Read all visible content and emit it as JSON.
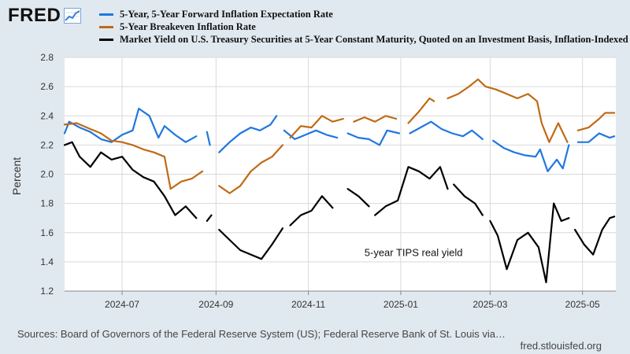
{
  "brand": {
    "logo_text": "FRED",
    "site": "fred.stlouisfed.org"
  },
  "footer": {
    "source": "Sources: Board of Governors of the Federal Reserve System (US); Federal Reserve Bank of St. Louis via…"
  },
  "chart_data": {
    "type": "line",
    "title": "",
    "xlabel": "",
    "ylabel": "Percent",
    "ylim": [
      1.2,
      2.8
    ],
    "yticks": [
      1.2,
      1.4,
      1.6,
      1.8,
      2.0,
      2.2,
      2.4,
      2.6,
      2.8
    ],
    "yticklabels": [
      "1.2",
      "1.4",
      "1.6",
      "1.8",
      "2.0",
      "2.2",
      "2.4",
      "2.6",
      "2.8"
    ],
    "xlim": [
      "2024-05-24",
      "2025-05-23"
    ],
    "xticks": [
      "2024-07-01",
      "2024-09-01",
      "2024-11-01",
      "2025-01-01",
      "2025-03-01",
      "2025-05-01"
    ],
    "xticklabels": [
      "2024-07",
      "2024-09",
      "2024-11",
      "2025-01",
      "2025-03",
      "2025-05"
    ],
    "grid": true,
    "legend_position": "top",
    "annotations": [
      {
        "text": "5-year TIPS real yield",
        "x": "2024-12-08",
        "y": 1.44
      }
    ],
    "series": [
      {
        "name": "5-Year, 5-Year Forward Inflation Expectation Rate",
        "color": "#1f77e0",
        "segments": [
          [
            [
              "2024-05-24",
              2.28
            ],
            [
              "2024-05-27",
              2.36
            ],
            [
              "2024-06-03",
              2.32
            ],
            [
              "2024-06-10",
              2.29
            ],
            [
              "2024-06-17",
              2.24
            ],
            [
              "2024-06-24",
              2.22
            ],
            [
              "2024-07-01",
              2.27
            ],
            [
              "2024-07-08",
              2.3
            ],
            [
              "2024-07-12",
              2.45
            ],
            [
              "2024-07-19",
              2.4
            ],
            [
              "2024-07-25",
              2.25
            ],
            [
              "2024-07-29",
              2.33
            ],
            [
              "2024-08-05",
              2.27
            ],
            [
              "2024-08-12",
              2.22
            ],
            [
              "2024-08-19",
              2.26
            ]
          ],
          [
            [
              "2024-08-26",
              2.29
            ],
            [
              "2024-08-28",
              2.2
            ]
          ],
          [
            [
              "2024-09-03",
              2.15
            ],
            [
              "2024-09-10",
              2.22
            ],
            [
              "2024-09-17",
              2.28
            ],
            [
              "2024-09-24",
              2.32
            ],
            [
              "2024-09-30",
              2.3
            ],
            [
              "2024-10-07",
              2.34
            ],
            [
              "2024-10-11",
              2.4
            ]
          ],
          [
            [
              "2024-10-16",
              2.3
            ],
            [
              "2024-10-23",
              2.24
            ],
            [
              "2024-10-30",
              2.27
            ],
            [
              "2024-11-06",
              2.3
            ],
            [
              "2024-11-13",
              2.27
            ],
            [
              "2024-11-20",
              2.25
            ]
          ],
          [
            [
              "2024-11-27",
              2.28
            ],
            [
              "2024-12-04",
              2.25
            ],
            [
              "2024-12-11",
              2.24
            ],
            [
              "2024-12-18",
              2.2
            ],
            [
              "2024-12-23",
              2.3
            ],
            [
              "2024-12-31",
              2.28
            ]
          ],
          [
            [
              "2025-01-07",
              2.28
            ],
            [
              "2025-01-14",
              2.32
            ],
            [
              "2025-01-21",
              2.36
            ],
            [
              "2025-01-28",
              2.31
            ],
            [
              "2025-02-04",
              2.28
            ],
            [
              "2025-02-11",
              2.26
            ],
            [
              "2025-02-17",
              2.3
            ],
            [
              "2025-02-24",
              2.24
            ]
          ],
          [
            [
              "2025-03-03",
              2.23
            ],
            [
              "2025-03-10",
              2.18
            ],
            [
              "2025-03-17",
              2.15
            ],
            [
              "2025-03-24",
              2.13
            ],
            [
              "2025-03-31",
              2.12
            ],
            [
              "2025-04-03",
              2.17
            ],
            [
              "2025-04-08",
              2.02
            ],
            [
              "2025-04-14",
              2.1
            ],
            [
              "2025-04-18",
              2.04
            ],
            [
              "2025-04-22",
              2.2
            ]
          ],
          [
            [
              "2025-04-28",
              2.22
            ],
            [
              "2025-05-05",
              2.22
            ],
            [
              "2025-05-12",
              2.28
            ],
            [
              "2025-05-19",
              2.25
            ],
            [
              "2025-05-22",
              2.26
            ]
          ]
        ]
      },
      {
        "name": "5-Year Breakeven Inflation Rate",
        "color": "#c06a16",
        "segments": [
          [
            [
              "2024-05-24",
              2.34
            ],
            [
              "2024-06-01",
              2.35
            ],
            [
              "2024-06-10",
              2.31
            ],
            [
              "2024-06-17",
              2.28
            ],
            [
              "2024-06-24",
              2.23
            ],
            [
              "2024-07-01",
              2.22
            ],
            [
              "2024-07-08",
              2.2
            ],
            [
              "2024-07-15",
              2.17
            ],
            [
              "2024-07-22",
              2.15
            ],
            [
              "2024-07-29",
              2.12
            ],
            [
              "2024-08-02",
              1.9
            ],
            [
              "2024-08-09",
              1.95
            ],
            [
              "2024-08-16",
              1.97
            ],
            [
              "2024-08-23",
              2.02
            ]
          ],
          [
            [
              "2024-09-03",
              1.92
            ],
            [
              "2024-09-10",
              1.87
            ],
            [
              "2024-09-17",
              1.92
            ],
            [
              "2024-09-24",
              2.02
            ],
            [
              "2024-10-01",
              2.08
            ],
            [
              "2024-10-08",
              2.12
            ],
            [
              "2024-10-15",
              2.2
            ]
          ],
          [
            [
              "2024-10-20",
              2.25
            ],
            [
              "2024-10-27",
              2.33
            ],
            [
              "2024-11-03",
              2.32
            ],
            [
              "2024-11-10",
              2.4
            ],
            [
              "2024-11-17",
              2.36
            ],
            [
              "2024-11-24",
              2.38
            ]
          ],
          [
            [
              "2024-12-01",
              2.36
            ],
            [
              "2024-12-08",
              2.39
            ],
            [
              "2024-12-15",
              2.36
            ],
            [
              "2024-12-22",
              2.4
            ],
            [
              "2024-12-29",
              2.38
            ]
          ],
          [
            [
              "2025-01-06",
              2.35
            ],
            [
              "2025-01-13",
              2.43
            ],
            [
              "2025-01-20",
              2.52
            ],
            [
              "2025-01-23",
              2.5
            ]
          ],
          [
            [
              "2025-02-01",
              2.52
            ],
            [
              "2025-02-08",
              2.55
            ],
            [
              "2025-02-15",
              2.6
            ],
            [
              "2025-02-21",
              2.65
            ],
            [
              "2025-02-26",
              2.6
            ],
            [
              "2025-03-05",
              2.58
            ],
            [
              "2025-03-12",
              2.55
            ],
            [
              "2025-03-19",
              2.52
            ],
            [
              "2025-03-26",
              2.55
            ],
            [
              "2025-04-01",
              2.5
            ],
            [
              "2025-04-04",
              2.35
            ],
            [
              "2025-04-09",
              2.22
            ],
            [
              "2025-04-15",
              2.35
            ],
            [
              "2025-04-21",
              2.22
            ]
          ],
          [
            [
              "2025-04-28",
              2.3
            ],
            [
              "2025-05-05",
              2.32
            ],
            [
              "2025-05-12",
              2.38
            ],
            [
              "2025-05-16",
              2.42
            ],
            [
              "2025-05-22",
              2.42
            ]
          ]
        ]
      },
      {
        "name": "Market Yield on U.S. Treasury Securities at 5-Year Constant Maturity, Quoted on an Investment Basis, Inflation-Indexed",
        "color": "#000000",
        "segments": [
          [
            [
              "2024-05-24",
              2.2
            ],
            [
              "2024-05-29",
              2.22
            ],
            [
              "2024-06-03",
              2.12
            ],
            [
              "2024-06-10",
              2.05
            ],
            [
              "2024-06-17",
              2.15
            ],
            [
              "2024-06-24",
              2.1
            ],
            [
              "2024-07-01",
              2.12
            ],
            [
              "2024-07-08",
              2.03
            ],
            [
              "2024-07-15",
              1.98
            ],
            [
              "2024-07-22",
              1.95
            ],
            [
              "2024-07-29",
              1.85
            ],
            [
              "2024-08-05",
              1.72
            ],
            [
              "2024-08-12",
              1.78
            ],
            [
              "2024-08-19",
              1.7
            ]
          ],
          [
            [
              "2024-08-26",
              1.68
            ],
            [
              "2024-08-29",
              1.72
            ]
          ],
          [
            [
              "2024-09-03",
              1.62
            ],
            [
              "2024-09-10",
              1.55
            ],
            [
              "2024-09-17",
              1.48
            ],
            [
              "2024-09-24",
              1.45
            ],
            [
              "2024-10-01",
              1.42
            ],
            [
              "2024-10-08",
              1.52
            ],
            [
              "2024-10-15",
              1.63
            ]
          ],
          [
            [
              "2024-10-20",
              1.65
            ],
            [
              "2024-10-27",
              1.72
            ],
            [
              "2024-11-03",
              1.75
            ],
            [
              "2024-11-10",
              1.85
            ],
            [
              "2024-11-17",
              1.77
            ]
          ],
          [
            [
              "2024-11-27",
              1.9
            ],
            [
              "2024-12-04",
              1.85
            ],
            [
              "2024-12-11",
              1.78
            ]
          ],
          [
            [
              "2024-12-15",
              1.72
            ],
            [
              "2024-12-22",
              1.78
            ],
            [
              "2024-12-30",
              1.82
            ],
            [
              "2025-01-06",
              2.05
            ],
            [
              "2025-01-13",
              2.02
            ],
            [
              "2025-01-20",
              1.97
            ],
            [
              "2025-01-27",
              2.05
            ],
            [
              "2025-02-01",
              1.9
            ]
          ],
          [
            [
              "2025-02-05",
              1.93
            ],
            [
              "2025-02-12",
              1.85
            ],
            [
              "2025-02-19",
              1.8
            ],
            [
              "2025-02-24",
              1.72
            ]
          ],
          [
            [
              "2025-03-01",
              1.68
            ],
            [
              "2025-03-06",
              1.58
            ],
            [
              "2025-03-12",
              1.35
            ],
            [
              "2025-03-19",
              1.55
            ],
            [
              "2025-03-26",
              1.6
            ],
            [
              "2025-04-02",
              1.5
            ],
            [
              "2025-04-07",
              1.26
            ],
            [
              "2025-04-12",
              1.8
            ],
            [
              "2025-04-17",
              1.68
            ],
            [
              "2025-04-22",
              1.7
            ]
          ],
          [
            [
              "2025-04-26",
              1.62
            ],
            [
              "2025-05-02",
              1.52
            ],
            [
              "2025-05-08",
              1.45
            ],
            [
              "2025-05-14",
              1.62
            ],
            [
              "2025-05-19",
              1.7
            ],
            [
              "2025-05-22",
              1.71
            ]
          ]
        ]
      }
    ]
  }
}
